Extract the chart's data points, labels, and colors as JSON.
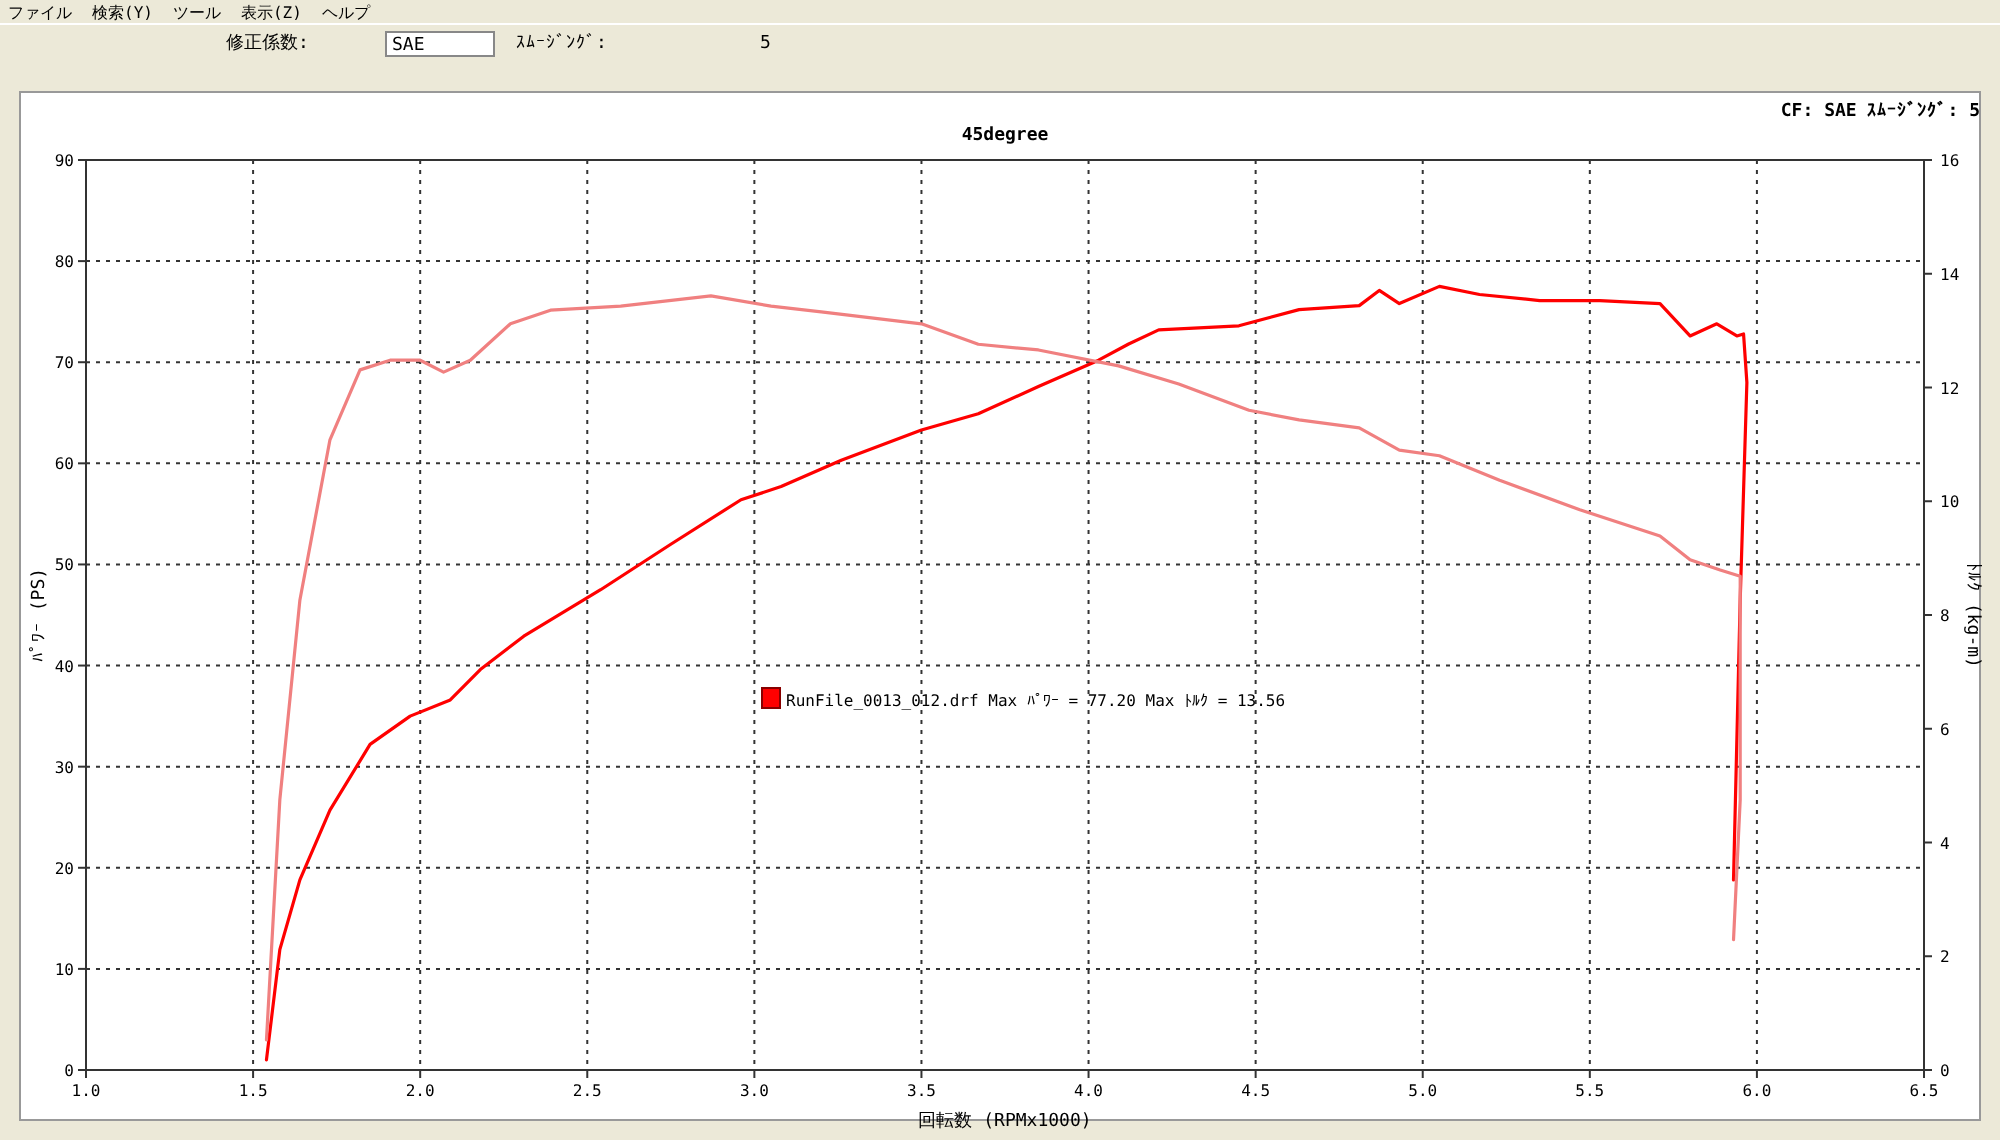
{
  "chart_data": {
    "type": "line",
    "title": "45degree",
    "xlabel": "回転数 (RPMx1000)",
    "ylabel": "ﾊﾟﾜｰ (PS)",
    "y2label": "ﾄﾙｸ (kg-m)",
    "annotations": [
      "ファイル",
      "検索(Y)",
      "ツール",
      "表示(Z)",
      "ヘルプ",
      "修正係数:",
      "SAE",
      "ｽﾑｰｼﾞﾝｸﾞ:",
      "5",
      "CF: SAE  ｽﾑｰｼﾞﾝｸﾞ: 5",
      "RunFile_0013_012.drf Max ﾊﾟﾜｰ = 77.20  Max ﾄﾙｸ = 13.56"
    ],
    "xlim": [
      1,
      6.5
    ],
    "xticks": [
      {
        "value": 1,
        "label": "1.0"
      },
      1.5,
      {
        "value": 2,
        "label": "2.0"
      },
      2.5,
      {
        "value": 3,
        "label": "3.0"
      },
      3.5,
      {
        "value": 4,
        "label": "4.0"
      },
      4.5,
      {
        "value": 5,
        "label": "5.0"
      },
      5.5,
      {
        "value": 6,
        "label": "6.0"
      },
      6.5
    ],
    "ylim": [
      0,
      90
    ],
    "yticks": [
      0,
      10,
      20,
      30,
      40,
      50,
      60,
      70,
      80,
      90
    ],
    "y2lim": [
      0,
      16
    ],
    "y2ticks": [
      0,
      2,
      4,
      6,
      8,
      10,
      12,
      14,
      16
    ],
    "grid": true,
    "line_style": "solid",
    "marker": "none",
    "series": [
      {
        "color": "#ff0000",
        "x": [
          1.54,
          1.58,
          1.64,
          1.73,
          1.85,
          1.97,
          2.09,
          2.18,
          2.31,
          2.54,
          2.75,
          2.96,
          3.08,
          3.26,
          3.5,
          3.67,
          3.85,
          4.03,
          4.12,
          4.21,
          4.45,
          4.63,
          4.81,
          4.87,
          4.93,
          5.05,
          5.17,
          5.35,
          5.53,
          5.71,
          5.8,
          5.88,
          5.94,
          5.96,
          5.97,
          5.95,
          5.93
        ],
        "values": [
          1,
          11.9,
          18.8,
          25.7,
          32.2,
          35,
          36.6,
          39.6,
          42.9,
          47.5,
          52,
          56.4,
          57.7,
          60.3,
          63.3,
          64.9,
          67.6,
          70.2,
          71.8,
          73.2,
          73.6,
          75.2,
          75.6,
          77.1,
          75.8,
          77.5,
          76.7,
          76.1,
          76.1,
          75.8,
          72.6,
          73.8,
          72.6,
          72.8,
          68,
          46.5,
          18.8
        ]
      },
      {
        "color": "#f08080",
        "axis": "y2",
        "x": [
          1.54,
          1.58,
          1.64,
          1.73,
          1.82,
          1.91,
          2.0,
          2.07,
          2.15,
          2.27,
          2.39,
          2.6,
          2.87,
          3.05,
          3.2,
          3.5,
          3.67,
          3.85,
          4.09,
          4.27,
          4.48,
          4.63,
          4.81,
          4.93,
          5.05,
          5.23,
          5.47,
          5.71,
          5.8,
          5.89,
          5.95,
          5.95,
          5.93
        ],
        "values": [
          0.53,
          4.75,
          8.26,
          11.08,
          12.31,
          12.48,
          12.48,
          12.27,
          12.48,
          13.12,
          13.36,
          13.43,
          13.61,
          13.43,
          13.33,
          13.12,
          12.76,
          12.66,
          12.38,
          12.06,
          11.6,
          11.43,
          11.29,
          10.9,
          10.8,
          10.37,
          9.85,
          9.39,
          8.97,
          8.79,
          8.68,
          4.75,
          2.29
        ]
      }
    ]
  }
}
